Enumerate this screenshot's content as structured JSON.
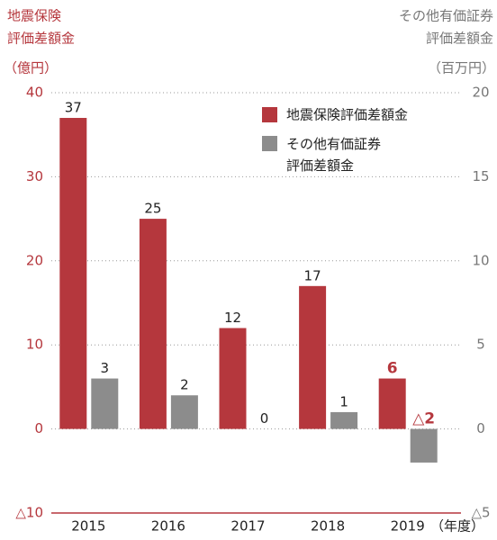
{
  "chart_data": {
    "type": "bar",
    "y_label": [
      "地震保険",
      "評価差額金"
    ],
    "y_unit": "（億円）",
    "y2_label": [
      "その他有価証券",
      "評価差額金"
    ],
    "y2_unit": "（百万円）",
    "x_unit": "（年度）",
    "categories": [
      "2015",
      "2016",
      "2017",
      "2018",
      "2019"
    ],
    "series": [
      {
        "name": "地震保険評価差額金",
        "color": "#b5373d",
        "values": [
          37,
          25,
          12,
          17,
          6
        ]
      },
      {
        "name": "その他有価証券評価差額金",
        "color": "#8c8c8c",
        "axis": "y2",
        "values": [
          3,
          2,
          0,
          1,
          -2
        ],
        "value_labels": [
          "3",
          "2",
          "0",
          "1",
          "△2"
        ]
      }
    ],
    "ylim": [
      -10,
      40
    ],
    "yticks": [
      40,
      30,
      20,
      10,
      0,
      {
        "value": -10,
        "label": "△10"
      }
    ],
    "y2lim": [
      -5,
      20
    ],
    "y2ticks": [
      20,
      15,
      10,
      5,
      0,
      {
        "value": -5,
        "label": "△5"
      }
    ],
    "grid": true,
    "legend": "top-right"
  }
}
